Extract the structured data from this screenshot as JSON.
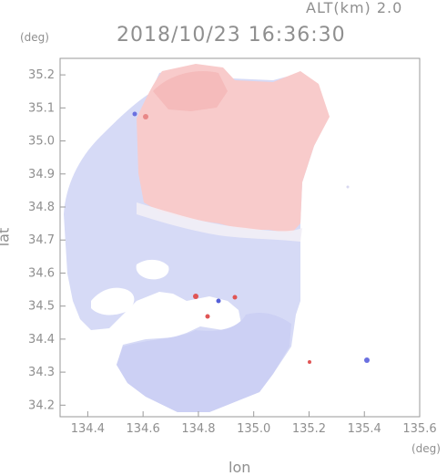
{
  "header": {
    "altitude": "ALT(km) 2.0",
    "timestamp": "2018/10/23 16:36:30"
  },
  "axes": {
    "xlabel": "lon",
    "ylabel": "lat",
    "xunit": "(deg)",
    "yunit": "(deg)"
  },
  "chart_data": {
    "type": "heatmap",
    "x_ticks": [
      "134.4",
      "134.6",
      "134.8",
      "135.0",
      "135.2",
      "135.4",
      "135.6"
    ],
    "y_ticks": [
      "35.2",
      "35.1",
      "35.0",
      "34.9",
      "34.8",
      "34.7",
      "34.6",
      "34.5",
      "34.4",
      "34.3",
      "34.2"
    ],
    "xlim": [
      134.3,
      135.6
    ],
    "ylim": [
      34.165,
      35.25
    ],
    "grid": false,
    "colors": {
      "positive": "#f8c8c8",
      "negative": "#d4d8f6",
      "neutral": "#f4f0f6"
    }
  }
}
